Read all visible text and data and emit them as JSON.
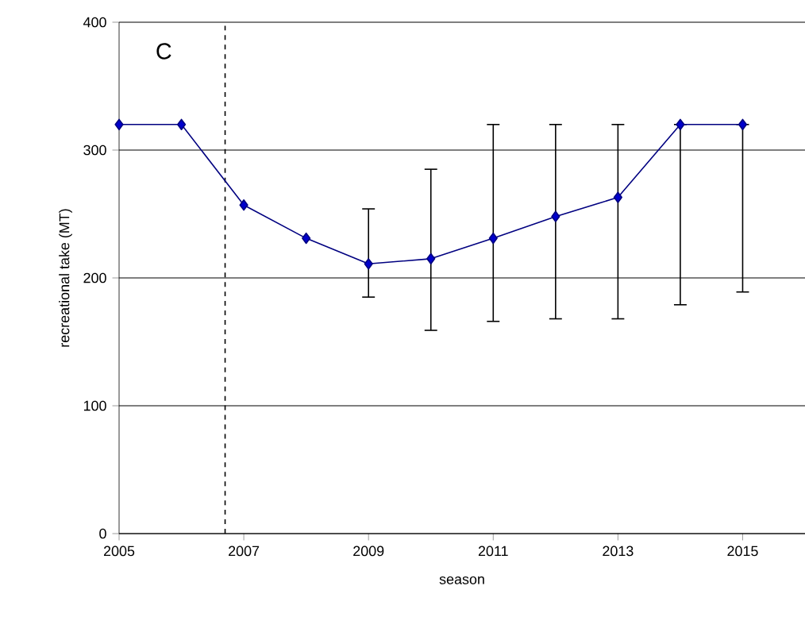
{
  "chart_data": {
    "type": "line",
    "xlabel": "season",
    "ylabel": "recreational take (MT)",
    "annotations": [
      "C"
    ],
    "x": [
      2005,
      2006,
      2007,
      2008,
      2009,
      2010,
      2011,
      2012,
      2013,
      2014,
      2015
    ],
    "series": [
      {
        "color": "#000080",
        "values": [
          320,
          320,
          257,
          231,
          211,
          215,
          231,
          248,
          263,
          320,
          320
        ],
        "errors": [
          null,
          null,
          null,
          null,
          [
            185,
            254
          ],
          [
            159,
            285
          ],
          [
            166,
            320
          ],
          [
            168,
            320
          ],
          [
            168,
            320
          ],
          [
            179,
            320
          ],
          [
            189,
            320
          ]
        ]
      }
    ],
    "xlim": [
      2005,
      2016
    ],
    "xticks": [
      2005,
      2007,
      2009,
      2011,
      2013,
      2015
    ],
    "ylim": [
      0,
      400
    ],
    "yticks": [
      0,
      100,
      200,
      300,
      400
    ],
    "grid": "y",
    "marker": "diamond",
    "line_style": "solid",
    "ref_lines": [
      {
        "axis": "x",
        "value": 2006.7,
        "line_style": "dashed",
        "color": "#000000"
      }
    ]
  }
}
